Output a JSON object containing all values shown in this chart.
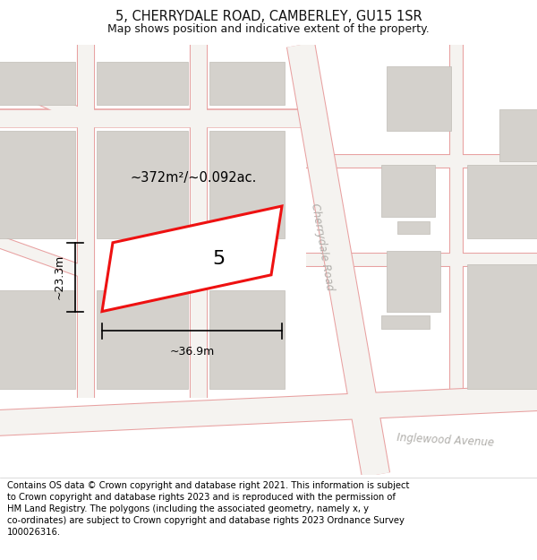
{
  "title": "5, CHERRYDALE ROAD, CAMBERLEY, GU15 1SR",
  "subtitle": "Map shows position and indicative extent of the property.",
  "footer": "Contains OS data © Crown copyright and database right 2021. This information is subject to Crown copyright and database rights 2023 and is reproduced with the permission of HM Land Registry. The polygons (including the associated geometry, namely x, y co-ordinates) are subject to Crown copyright and database rights 2023 Ordnance Survey 100026316.",
  "map_bg": "#eeece8",
  "road_fill": "#f5f3f0",
  "road_edge": "#e8a0a0",
  "building_color": "#d4d1cc",
  "building_edge": "#c0bcb6",
  "plot_fill": "#ffffff",
  "plot_edge": "#ee1111",
  "road_label_color": "#b0aeaa",
  "area_text": "~372m²/~0.092ac.",
  "width_text": "~36.9m",
  "height_text": "~23.3m",
  "plot_number": "5",
  "cherrydale_road_label": "Cherrydale Road",
  "inglewood_label": "Inglewood Avenue",
  "title_fontsize": 10.5,
  "subtitle_fontsize": 9,
  "footer_fontsize": 7.2,
  "title_color": "#111111",
  "footer_bg": "#ffffff",
  "white": "#ffffff"
}
